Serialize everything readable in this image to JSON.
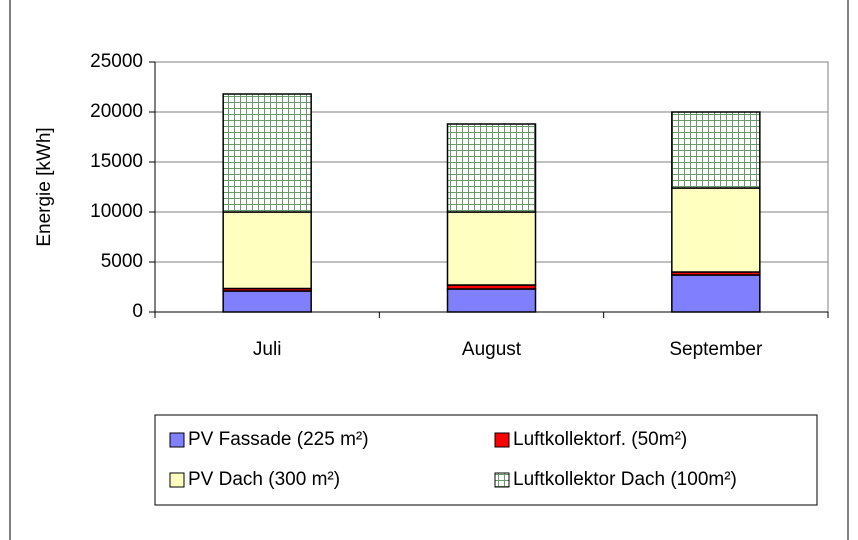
{
  "chart_data": {
    "type": "stacked_bar",
    "ylabel": "Energie [kWh]",
    "categories": [
      "Juli",
      "August",
      "September"
    ],
    "series": [
      {
        "name": "PV Fassade (225 m²)",
        "color": "#8080ff",
        "values": [
          2100,
          2300,
          3700
        ]
      },
      {
        "name": "Luftkollektorf. (50m²)",
        "color": "#ff0000",
        "values": [
          250,
          400,
          300
        ]
      },
      {
        "name": "PV Dach (300 m²)",
        "color": "#ffffc0",
        "values": [
          7650,
          7300,
          8400
        ]
      },
      {
        "name": "Luftkollektor Dach (100m²)",
        "color": "#6a9a6a",
        "hatch": true,
        "values": [
          11800,
          8800,
          7600
        ]
      }
    ],
    "ylim": [
      0,
      25000
    ],
    "yticks": [
      0,
      5000,
      10000,
      15000,
      20000,
      25000
    ],
    "grid": true
  }
}
